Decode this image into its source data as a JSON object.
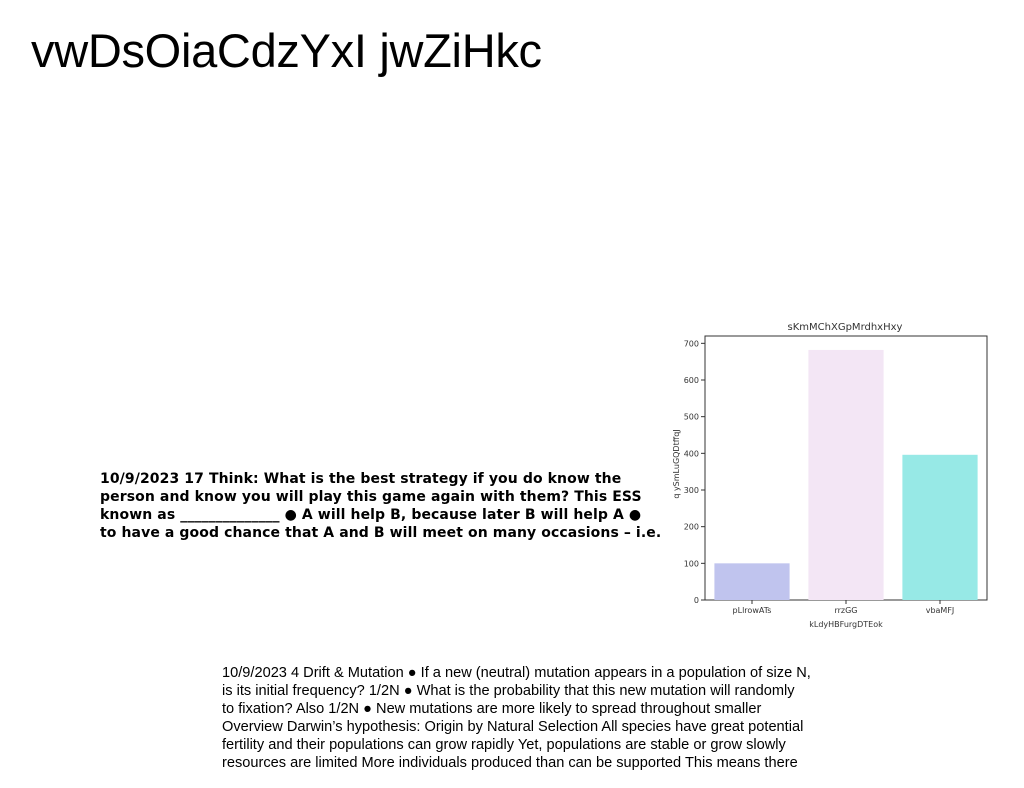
{
  "page": {
    "title": "vwDsOiaCdzYxI jwZiHkc"
  },
  "think_block": {
    "lines": [
      "10/9/2023 17 Think: What is the best strategy if you do know the",
      "person and know you will play this game again with them? This ESS",
      "known as ______________ ● A will help B, because later B will help A ●",
      "to have a good chance that A and B will meet on many occasions – i.e."
    ]
  },
  "drift_block": {
    "lines": [
      "10/9/2023 4 Drift & Mutation ● If a new (neutral) mutation appears in a population of size N,",
      "is its initial frequency? 1/2N ● What is the probability that this new mutation will randomly",
      "to fixation? Also 1/2N ● New mutations are more likely to spread throughout smaller",
      "Overview Darwin’s hypothesis: Origin by Natural Selection All species have great potential",
      "fertility and their populations can grow rapidly Yet, populations are stable or grow slowly",
      "resources are limited More individuals produced than can be supported This means there"
    ]
  },
  "chart_data": {
    "type": "bar",
    "title": "sKmMChXGpMrdhxHxy",
    "xlabel": "kLdyHBFurgDTEok",
    "ylabel": "q ySmLuGQDtffqJ",
    "categories": [
      "pLlrowATs",
      "rrzGG",
      "vbaMFJ"
    ],
    "values": [
      100,
      682,
      396
    ],
    "colors": [
      "#c0c4ee",
      "#f3e6f5",
      "#97e9e6"
    ],
    "ylim": [
      0,
      720
    ],
    "yticks": [
      0,
      100,
      200,
      300,
      400,
      500,
      600,
      700
    ],
    "grid": false,
    "legend": "none"
  }
}
